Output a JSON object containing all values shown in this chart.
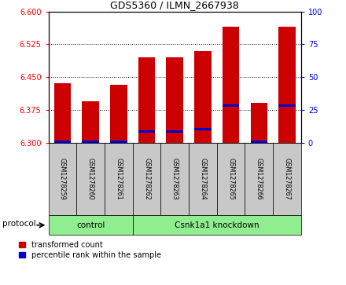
{
  "title": "GDS5360 / ILMN_2667938",
  "samples": [
    "GSM1278259",
    "GSM1278260",
    "GSM1278261",
    "GSM1278262",
    "GSM1278263",
    "GSM1278264",
    "GSM1278265",
    "GSM1278266",
    "GSM1278267"
  ],
  "red_values": [
    6.435,
    6.395,
    6.432,
    6.495,
    6.495,
    6.51,
    6.565,
    6.39,
    6.565
  ],
  "blue_values": [
    6.302,
    6.302,
    6.302,
    6.325,
    6.325,
    6.33,
    6.385,
    6.302,
    6.385
  ],
  "ylim_left": [
    6.3,
    6.6
  ],
  "ylim_right": [
    0,
    100
  ],
  "yticks_left": [
    6.3,
    6.375,
    6.45,
    6.525,
    6.6
  ],
  "yticks_right": [
    0,
    25,
    50,
    75,
    100
  ],
  "bar_width": 0.6,
  "bar_bottom": 6.3,
  "red_color": "#CC0000",
  "blue_color": "#0000CC",
  "tick_area_bg": "#C8C8C8",
  "group_area_bg": "#90EE90",
  "legend_items": [
    {
      "label": "transformed count",
      "color": "#CC0000"
    },
    {
      "label": "percentile rank within the sample",
      "color": "#0000CC"
    }
  ],
  "blue_bar_thickness": 0.005,
  "control_label": "control",
  "knockdown_label": "Csnk1a1 knockdown",
  "protocol_label": "protocol"
}
